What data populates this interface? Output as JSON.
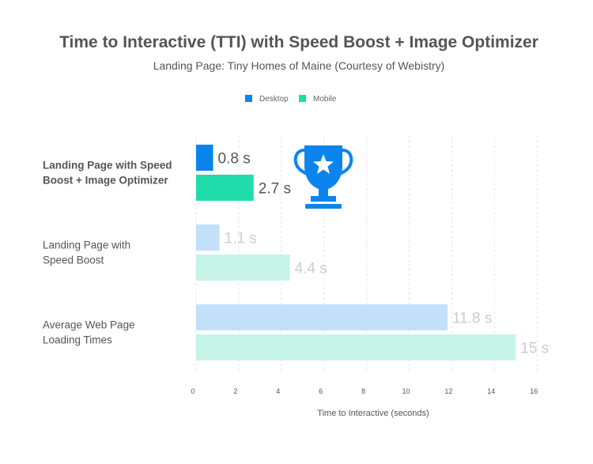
{
  "chart_data": {
    "type": "bar",
    "orientation": "horizontal",
    "title": "Time to Interactive (TTI) with Speed Boost + Image Optimizer",
    "subtitle": "Landing Page: Tiny Homes of Maine (Courtesy of Webistry)",
    "xlabel": "Time to Interactive (seconds)",
    "ylabel": "",
    "xlim": [
      0,
      16
    ],
    "xticks": [
      0,
      2,
      4,
      6,
      8,
      10,
      12,
      14,
      16
    ],
    "grid": true,
    "legend_position": "top-center",
    "categories": [
      [
        "Landing Page with Speed",
        "Boost + Image Optimizer"
      ],
      [
        "Landing Page with",
        "Speed Boost"
      ],
      [
        "Average Web Page",
        "Loading Times"
      ]
    ],
    "highlighted_category": 0,
    "series": [
      {
        "name": "Desktop",
        "values": [
          0.8,
          1.1,
          11.8
        ],
        "labels": [
          "0.8 s",
          "1.1 s",
          "11.8 s"
        ],
        "color": "#0b84ee",
        "faded_color": "#c3e0fb"
      },
      {
        "name": "Mobile",
        "values": [
          2.7,
          4.4,
          15
        ],
        "labels": [
          "2.7 s",
          "4.4 s",
          "15 s"
        ],
        "color": "#1fdcaa",
        "faded_color": "#c7f4e8"
      }
    ],
    "label_colors": {
      "highlight": "#555555",
      "faded": "#cccccc"
    },
    "icon": {
      "name": "trophy-icon",
      "color": "#0b84ee"
    }
  }
}
